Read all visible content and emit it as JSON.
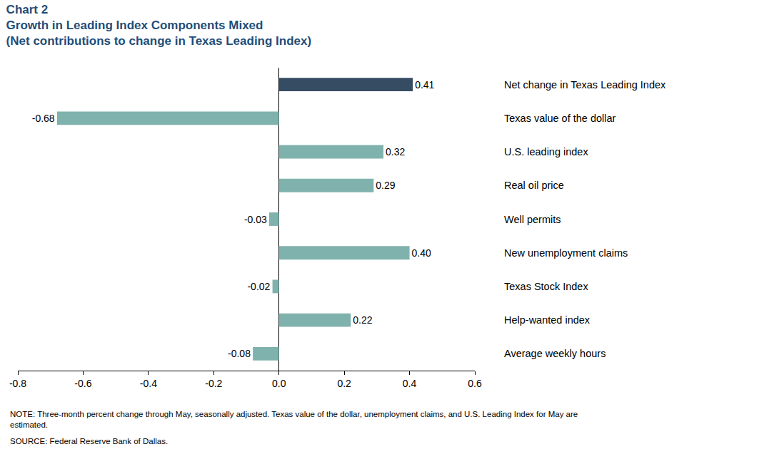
{
  "chart_data": {
    "type": "bar",
    "orientation": "horizontal",
    "title": "Chart 2",
    "subtitle": [
      "Growth in Leading Index Components Mixed",
      "(Net contributions to change in Texas Leading Index)"
    ],
    "categories": [
      "Net change in Texas Leading Index",
      "Texas value of the dollar",
      "U.S. leading index",
      "Real oil price",
      "Well permits",
      "New unemployment claims",
      "Texas Stock Index",
      "Help-wanted index",
      "Average weekly hours"
    ],
    "values": [
      0.41,
      -0.68,
      0.32,
      0.29,
      -0.03,
      0.4,
      -0.02,
      0.22,
      -0.08
    ],
    "value_labels": [
      "0.41",
      "-0.68",
      "0.32",
      "0.29",
      "-0.03",
      "0.40",
      "-0.02",
      "0.22",
      "-0.08"
    ],
    "colors": [
      "#354c63",
      "#80b2ad",
      "#80b2ad",
      "#80b2ad",
      "#80b2ad",
      "#80b2ad",
      "#80b2ad",
      "#80b2ad",
      "#80b2ad"
    ],
    "xlim": [
      -0.8,
      0.6
    ],
    "xticks": [
      -0.8,
      -0.6,
      -0.4,
      -0.2,
      {
        "value": 0,
        "label": "0.0"
      },
      0.2,
      0.4,
      0.6
    ],
    "grid": false,
    "data_labels": true,
    "note": [
      "NOTE: Three-month percent change through May, seasonally adjusted. Texas value of the dollar, unemployment claims, and U.S. Leading Index for May are",
      "estimated."
    ],
    "source": "SOURCE: Federal Reserve Bank of Dallas."
  }
}
